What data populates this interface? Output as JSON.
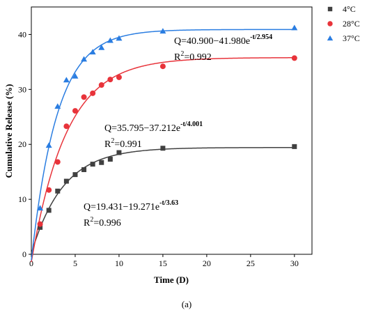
{
  "chart_data": {
    "type": "scatter",
    "xlabel": "Time (D)",
    "ylabel": "Cumulative Release (%)",
    "xlim": [
      0,
      32
    ],
    "ylim": [
      0,
      45
    ],
    "xticks": [
      0,
      5,
      10,
      15,
      20,
      25,
      30
    ],
    "yticks": [
      0,
      10,
      20,
      30,
      40
    ],
    "legend": {
      "placement": "outside-top-right",
      "entries": [
        "4°C",
        "28°C",
        "37°C"
      ]
    },
    "series": [
      {
        "name": "4°C",
        "marker": "square",
        "color": "#404040",
        "x": [
          1,
          2,
          3,
          4,
          5,
          6,
          7,
          8,
          9,
          10,
          15,
          30
        ],
        "y": [
          4.9,
          8.0,
          11.5,
          13.3,
          14.5,
          15.4,
          16.4,
          16.7,
          17.3,
          18.5,
          19.3,
          19.6
        ],
        "fit": {
          "a": 19.431,
          "b": 19.271,
          "tau": 3.63
        },
        "equation": {
          "main": "Q=19.431−19.271e",
          "exp": "-t/3.63",
          "r2_prefix": "R",
          "r2_power": "2",
          "r2_value": "=0.996"
        }
      },
      {
        "name": "28°C",
        "marker": "circle",
        "color": "#e8333a",
        "x": [
          1,
          2,
          3,
          4,
          5,
          6,
          7,
          8,
          9,
          10,
          15,
          30
        ],
        "y": [
          5.5,
          11.7,
          16.8,
          23.3,
          26.1,
          28.6,
          29.3,
          30.8,
          31.8,
          32.2,
          34.2,
          35.7
        ],
        "fit": {
          "a": 35.795,
          "b": 37.212,
          "tau": 4.001
        },
        "equation": {
          "main": "Q=35.795−37.212e",
          "exp": "-t/4.001",
          "r2_prefix": "R",
          "r2_power": "2",
          "r2_value": "=0.991"
        }
      },
      {
        "name": "37°C",
        "marker": "triangle",
        "color": "#2a7de1",
        "x": [
          1,
          2,
          3,
          4,
          5,
          6,
          7,
          8,
          9,
          10,
          15,
          30
        ],
        "y": [
          8.4,
          19.8,
          26.9,
          31.7,
          32.4,
          35.5,
          36.8,
          37.6,
          38.9,
          39.3,
          40.6,
          41.2
        ],
        "fit": {
          "a": 40.9,
          "b": 41.98,
          "tau": 2.954
        },
        "equation": {
          "main": "Q=40.900−41.980e",
          "exp": "-t/2.954",
          "r2_prefix": "R",
          "r2_power": "2",
          "r2_value": "=0.992"
        }
      }
    ]
  },
  "caption": "(a)"
}
